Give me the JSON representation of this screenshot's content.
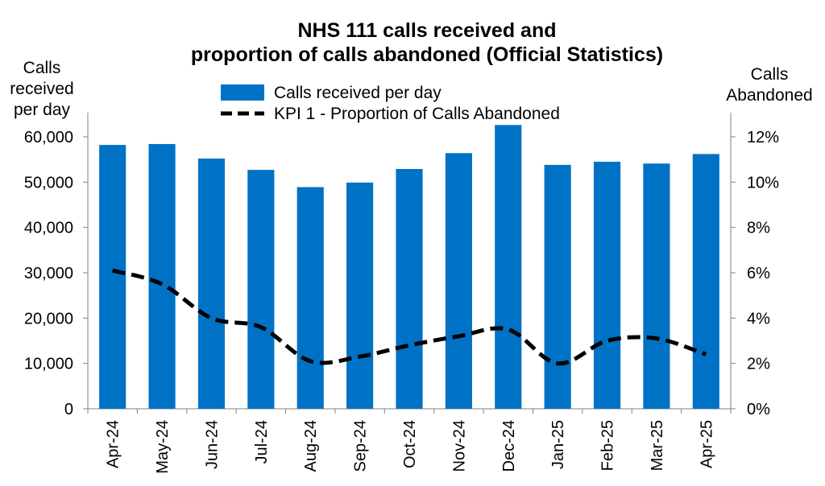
{
  "chart_data": {
    "type": "bar",
    "title_lines": [
      "NHS 111 calls received and",
      "proportion of calls abandoned (Official Statistics)"
    ],
    "left_axis_label_lines": [
      "Calls",
      "received",
      "per day"
    ],
    "right_axis_label_lines": [
      "Calls",
      "Abandoned"
    ],
    "categories": [
      "Apr-24",
      "May-24",
      "Jun-24",
      "Jul-24",
      "Aug-24",
      "Sep-24",
      "Oct-24",
      "Nov-24",
      "Dec-24",
      "Jan-25",
      "Feb-25",
      "Mar-25",
      "Apr-25"
    ],
    "series": [
      {
        "name": "Calls received per day",
        "type": "bar",
        "axis": "left",
        "color": "#0072c6",
        "values": [
          58200,
          58400,
          55200,
          52700,
          48900,
          49900,
          52900,
          56400,
          62600,
          53800,
          54500,
          54100,
          56200
        ]
      },
      {
        "name": "KPI 1 - Proportion of Calls Abandoned",
        "type": "line",
        "axis": "right",
        "style": "dashed",
        "color": "#000000",
        "values": [
          6.1,
          5.5,
          4.0,
          3.6,
          2.1,
          2.3,
          2.8,
          3.2,
          3.5,
          2.0,
          3.0,
          3.1,
          2.4
        ]
      }
    ],
    "left_ylim": [
      0,
      60000
    ],
    "left_ticks": [
      0,
      10000,
      20000,
      30000,
      40000,
      50000,
      60000
    ],
    "left_tick_labels": [
      "0",
      "10,000",
      "20,000",
      "30,000",
      "40,000",
      "50,000",
      "60,000"
    ],
    "right_ylim": [
      0,
      12
    ],
    "right_ticks": [
      0,
      2,
      4,
      6,
      8,
      10,
      12
    ],
    "right_tick_labels": [
      "0%",
      "2%",
      "4%",
      "6%",
      "8%",
      "10%",
      "12%"
    ],
    "legend_position": "top-center"
  }
}
